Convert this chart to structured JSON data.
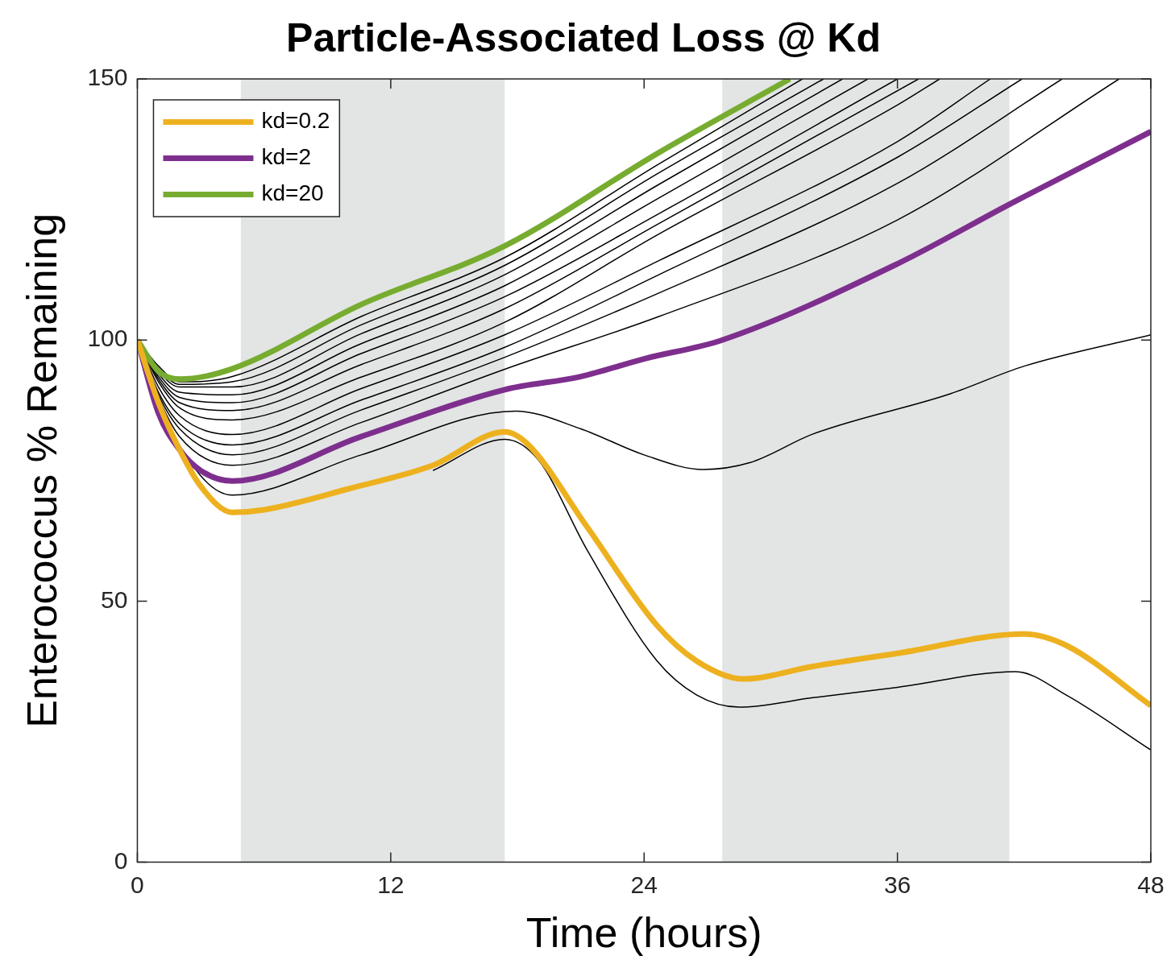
{
  "chart_data": {
    "type": "line",
    "title": "Particle-Associated Loss @ Kd",
    "xlabel": "Time (hours)",
    "ylabel": "Enterococcus % Remaining",
    "xlim": [
      0,
      48
    ],
    "xticks": [
      0,
      12,
      24,
      36,
      48
    ],
    "ylim": [
      0,
      150
    ],
    "yticks": [
      0,
      50,
      100,
      150
    ],
    "grid": false,
    "legend": "top left",
    "marker": "none",
    "line_style": "solid",
    "bands": [
      {
        "axis": "x",
        "from": 4.9,
        "to": 17.4,
        "color": "#e3e5e4"
      },
      {
        "axis": "x",
        "from": 27.7,
        "to": 41.3,
        "color": "#e3e5e4"
      }
    ],
    "series": [
      {
        "color": "#000000",
        "x": [
          14,
          17.4,
          19,
          21.3,
          24.6,
          26.5,
          28.5,
          32,
          36,
          41.6,
          44,
          48
        ],
        "values": [
          75,
          81,
          77,
          59.8,
          38.6,
          32,
          29.7,
          31.5,
          33.5,
          36.5,
          32,
          21.5
        ]
      },
      {
        "color": "#000000",
        "x": [
          0,
          1,
          3,
          4.5,
          10.6,
          17.9,
          21,
          24,
          26.8,
          29,
          32,
          38.5,
          42,
          48
        ],
        "values": [
          100,
          88,
          74,
          70.3,
          78,
          86.4,
          83,
          78,
          75.2,
          76.5,
          82,
          89.7,
          95,
          101
        ]
      },
      {
        "color": "#000000",
        "x": [
          0,
          1,
          2,
          4.5,
          10.6,
          17.4,
          24.7,
          31.5
        ],
        "values": [
          100,
          95,
          92,
          93,
          104.5,
          115.8,
          133.7,
          150
        ]
      },
      {
        "color": "#000000",
        "x": [
          0,
          1,
          2,
          4.5,
          10.6,
          17.4,
          24.7,
          32.5
        ],
        "values": [
          100,
          94.5,
          91.5,
          92,
          102.9,
          114.3,
          132,
          150
        ]
      },
      {
        "color": "#000000",
        "x": [
          0,
          1,
          2,
          4.5,
          10.6,
          17.4,
          24.7,
          33.4
        ],
        "values": [
          100,
          94,
          91,
          91,
          101.2,
          112.5,
          129.8,
          150
        ]
      },
      {
        "color": "#000000",
        "x": [
          0,
          1,
          2,
          4.5,
          10.6,
          17.4,
          24.7,
          34.6
        ],
        "values": [
          100,
          93.5,
          90,
          89.5,
          99.3,
          110.4,
          127.2,
          150
        ]
      },
      {
        "color": "#000000",
        "x": [
          0,
          1,
          2,
          4.5,
          10.6,
          17.4,
          24.7,
          36
        ],
        "values": [
          100,
          93,
          89,
          88,
          97.4,
          108.3,
          124.2,
          150
        ]
      },
      {
        "color": "#000000",
        "x": [
          0,
          1,
          2,
          4.5,
          10.6,
          17.4,
          24.7,
          37
        ],
        "values": [
          100,
          92.5,
          88,
          86.5,
          95.3,
          106,
          122.3,
          150
        ]
      },
      {
        "color": "#000000",
        "x": [
          0,
          1,
          2,
          4.5,
          10.6,
          17.4,
          24.7,
          36,
          38
        ],
        "values": [
          100,
          92,
          87,
          84.7,
          92.9,
          103.4,
          120.3,
          145,
          150
        ]
      },
      {
        "color": "#000000",
        "x": [
          0,
          1,
          2,
          4.5,
          10.6,
          17.4,
          24.7,
          36,
          40.4
        ],
        "values": [
          100,
          91,
          85.5,
          81.9,
          90.7,
          101,
          115.2,
          138,
          150
        ]
      },
      {
        "color": "#000000",
        "x": [
          0,
          1,
          2,
          4.5,
          10.6,
          17.4,
          24.7,
          36,
          41.9
        ],
        "values": [
          100,
          90,
          84,
          79.9,
          88.5,
          98.6,
          112.5,
          135,
          150
        ]
      },
      {
        "color": "#000000",
        "x": [
          0,
          1,
          2,
          4.5,
          10.6,
          17.4,
          24.7,
          36,
          43.8
        ],
        "values": [
          100,
          89.5,
          83,
          78,
          86.6,
          96.7,
          109,
          130,
          150
        ]
      },
      {
        "color": "#000000",
        "x": [
          0,
          1,
          2,
          4.5,
          10.6,
          17.4,
          24.7,
          36,
          46.5
        ],
        "values": [
          100,
          89,
          81.5,
          76,
          84.2,
          94.4,
          104.5,
          123,
          150
        ]
      },
      {
        "name": "kd=0.2",
        "color": "#edb120",
        "x": [
          0,
          1,
          2,
          3,
          4.5,
          6,
          10,
          14,
          17.4,
          18.5,
          21.3,
          24.6,
          26.5,
          28.7,
          32,
          36,
          42,
          44,
          48
        ],
        "values": [
          100,
          88,
          79,
          72,
          67,
          67.5,
          71.5,
          76,
          82.4,
          80,
          64.2,
          45.4,
          38.5,
          35.1,
          37.5,
          40,
          43.7,
          41.5,
          30
        ]
      },
      {
        "name": "kd=2",
        "color": "#7e2f8e",
        "x": [
          0,
          1,
          2,
          3,
          4.5,
          10.6,
          17.4,
          21,
          24,
          27.7,
          36,
          41.4,
          48
        ],
        "values": [
          100,
          86,
          79,
          75,
          73,
          81.5,
          90.5,
          93,
          96.4,
          100,
          114.6,
          126.2,
          139.9
        ]
      },
      {
        "name": "kd=20",
        "color": "#77ac30",
        "x": [
          0,
          1,
          2,
          4.5,
          10.6,
          17.4,
          24.7,
          30.9
        ],
        "values": [
          100,
          94,
          92.5,
          94.5,
          106.8,
          118,
          135.9,
          150
        ]
      }
    ]
  }
}
